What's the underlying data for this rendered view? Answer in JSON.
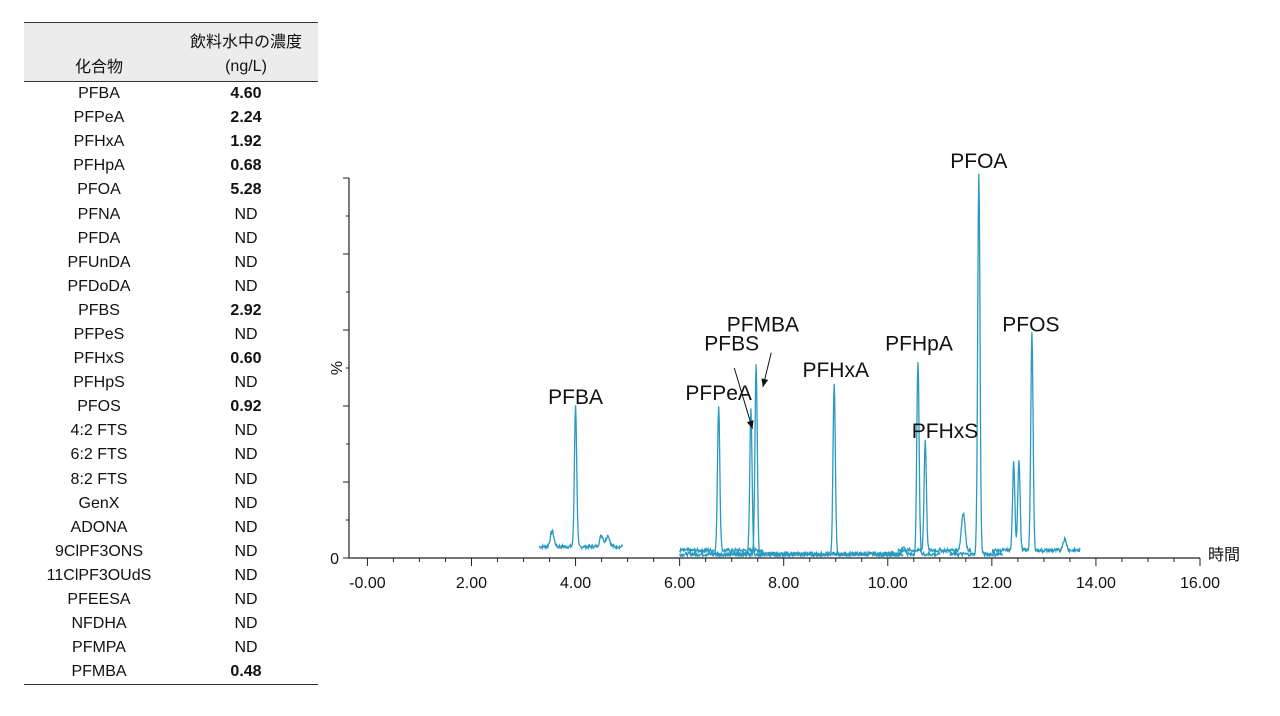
{
  "table": {
    "header": {
      "compound": "化合物",
      "concentration_line1": "飲料水中の濃度",
      "concentration_line2": "(ng/L)"
    },
    "rows": [
      {
        "compound": "PFBA",
        "value": "4.60",
        "detected": true
      },
      {
        "compound": "PFPeA",
        "value": "2.24",
        "detected": true
      },
      {
        "compound": "PFHxA",
        "value": "1.92",
        "detected": true
      },
      {
        "compound": "PFHpA",
        "value": "0.68",
        "detected": true
      },
      {
        "compound": "PFOA",
        "value": "5.28",
        "detected": true
      },
      {
        "compound": "PFNA",
        "value": "ND",
        "detected": false
      },
      {
        "compound": "PFDA",
        "value": "ND",
        "detected": false
      },
      {
        "compound": "PFUnDA",
        "value": "ND",
        "detected": false
      },
      {
        "compound": "PFDoDA",
        "value": "ND",
        "detected": false
      },
      {
        "compound": "PFBS",
        "value": "2.92",
        "detected": true
      },
      {
        "compound": "PFPeS",
        "value": "ND",
        "detected": false
      },
      {
        "compound": "PFHxS",
        "value": "0.60",
        "detected": true
      },
      {
        "compound": "PFHpS",
        "value": "ND",
        "detected": false
      },
      {
        "compound": "PFOS",
        "value": "0.92",
        "detected": true
      },
      {
        "compound": "4:2 FTS",
        "value": "ND",
        "detected": false
      },
      {
        "compound": "6:2 FTS",
        "value": "ND",
        "detected": false
      },
      {
        "compound": "8:2 FTS",
        "value": "ND",
        "detected": false
      },
      {
        "compound": "GenX",
        "value": "ND",
        "detected": false
      },
      {
        "compound": "ADONA",
        "value": "ND",
        "detected": false
      },
      {
        "compound": "9ClPF3ONS",
        "value": "ND",
        "detected": false
      },
      {
        "compound": "11ClPF3OUdS",
        "value": "ND",
        "detected": false
      },
      {
        "compound": "PFEESA",
        "value": "ND",
        "detected": false
      },
      {
        "compound": "NFDHA",
        "value": "ND",
        "detected": false
      },
      {
        "compound": "PFMPA",
        "value": "ND",
        "detected": false
      },
      {
        "compound": "PFMBA",
        "value": "0.48",
        "detected": true
      }
    ]
  },
  "chart_data": {
    "type": "line",
    "xlabel": "時間",
    "ylabel": "%",
    "xlim": [
      -0.2,
      16.0
    ],
    "ylim": [
      0,
      100
    ],
    "x_tick_labels": [
      "-0.00",
      "2.00",
      "4.00",
      "6.00",
      "8.00",
      "10.00",
      "12.00",
      "14.00",
      "16.00"
    ],
    "y_tick_labels": [
      "0"
    ],
    "line_color": "#2a9ac0",
    "series": [
      {
        "x_start": 3.3,
        "x_end": 4.9,
        "baseline": 3,
        "peaks": [
          {
            "x": 4.0,
            "height": 37,
            "name": "PFBA"
          }
        ],
        "minor_peaks": [
          {
            "x": 3.55,
            "height": 4
          },
          {
            "x": 4.5,
            "height": 3
          },
          {
            "x": 4.62,
            "height": 3
          }
        ]
      },
      {
        "x_start": 6.0,
        "x_end": 7.6,
        "baseline": 2,
        "peaks": [
          {
            "x": 6.75,
            "height": 38,
            "name": "PFPeA"
          }
        ],
        "minor_peaks": []
      },
      {
        "x_start": 6.0,
        "x_end": 7.9,
        "baseline": 1,
        "peaks": [
          {
            "x": 7.37,
            "height": 38,
            "name": "PFBS"
          }
        ],
        "minor_peaks": []
      },
      {
        "x_start": 6.6,
        "x_end": 10.2,
        "baseline": 1,
        "peaks": [
          {
            "x": 7.47,
            "height": 50,
            "name": "PFMBA"
          }
        ],
        "minor_peaks": []
      },
      {
        "x_start": 7.7,
        "x_end": 10.3,
        "baseline": 1,
        "peaks": [
          {
            "x": 8.97,
            "height": 45,
            "name": "PFHxA"
          }
        ],
        "minor_peaks": []
      },
      {
        "x_start": 9.9,
        "x_end": 11.0,
        "baseline": 1,
        "peaks": [
          {
            "x": 10.58,
            "height": 51,
            "name": "PFHpA"
          }
        ],
        "minor_peaks": [
          {
            "x": 10.3,
            "height": 2
          }
        ]
      },
      {
        "x_start": 10.2,
        "x_end": 11.6,
        "baseline": 2,
        "peaks": [
          {
            "x": 10.72,
            "height": 29,
            "name": "PFHxS"
          }
        ],
        "minor_peaks": [
          {
            "x": 11.45,
            "height": 10
          }
        ]
      },
      {
        "x_start": 11.2,
        "x_end": 12.2,
        "baseline": 1,
        "peaks": [
          {
            "x": 11.75,
            "height": 100,
            "name": "PFOA"
          }
        ],
        "minor_peaks": []
      },
      {
        "x_start": 12.0,
        "x_end": 13.7,
        "baseline": 2,
        "peaks": [
          {
            "x": 12.77,
            "height": 57,
            "name": "PFOS"
          }
        ],
        "minor_peaks": [
          {
            "x": 12.42,
            "height": 23
          },
          {
            "x": 12.52,
            "height": 24
          },
          {
            "x": 13.4,
            "height": 3
          }
        ]
      }
    ],
    "annotations": [
      {
        "text": "PFBA",
        "x": 4.0,
        "y": 39
      },
      {
        "text": "PFPeA",
        "x": 6.75,
        "y": 40
      },
      {
        "text": "PFBS",
        "x": 7.0,
        "y": 53
      },
      {
        "text": "PFMBA",
        "x": 7.6,
        "y": 58
      },
      {
        "text": "PFHxA",
        "x": 9.0,
        "y": 46
      },
      {
        "text": "PFHpA",
        "x": 10.6,
        "y": 53
      },
      {
        "text": "PFHxS",
        "x": 11.1,
        "y": 30
      },
      {
        "text": "PFOA",
        "x": 11.75,
        "y": 101
      },
      {
        "text": "PFOS",
        "x": 12.75,
        "y": 58
      }
    ],
    "arrows": [
      {
        "from": [
          7.05,
          50
        ],
        "to": [
          7.4,
          34
        ]
      },
      {
        "from": [
          7.76,
          54
        ],
        "to": [
          7.6,
          45
        ]
      }
    ]
  }
}
